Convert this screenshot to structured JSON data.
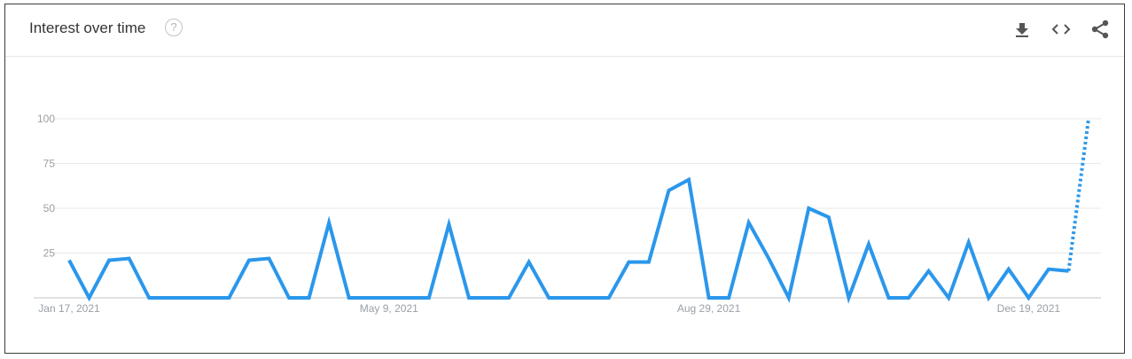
{
  "header": {
    "title": "Interest over time",
    "help_symbol": "?"
  },
  "icons": [
    "download-icon",
    "embed-icon",
    "share-icon"
  ],
  "colors": {
    "line": "#2b97eb",
    "grid": "#e8e8e8",
    "axis": "#c6c6c6",
    "tick_text": "#9aa0a6"
  },
  "chart_data": {
    "type": "line",
    "title": "",
    "xlabel": "",
    "ylabel": "",
    "ylim": [
      0,
      100
    ],
    "yticks": [
      25,
      50,
      75,
      100
    ],
    "xtick_labels": [
      "Jan 17, 2021",
      "May 9, 2021",
      "Aug 29, 2021",
      "Dec 19, 2021"
    ],
    "xtick_indices": [
      0,
      16,
      32,
      48
    ],
    "grid": true,
    "series": [
      {
        "values": [
          21,
          0,
          21,
          22,
          0,
          0,
          0,
          0,
          0,
          21,
          22,
          0,
          0,
          42,
          0,
          0,
          0,
          0,
          0,
          41,
          0,
          0,
          0,
          20,
          0,
          0,
          0,
          0,
          20,
          20,
          60,
          66,
          0,
          0,
          42,
          22,
          0,
          50,
          45,
          0,
          30,
          0,
          0,
          15,
          0,
          31,
          0,
          16,
          0,
          16,
          15,
          100
        ],
        "partial_from_index": 50
      }
    ]
  }
}
